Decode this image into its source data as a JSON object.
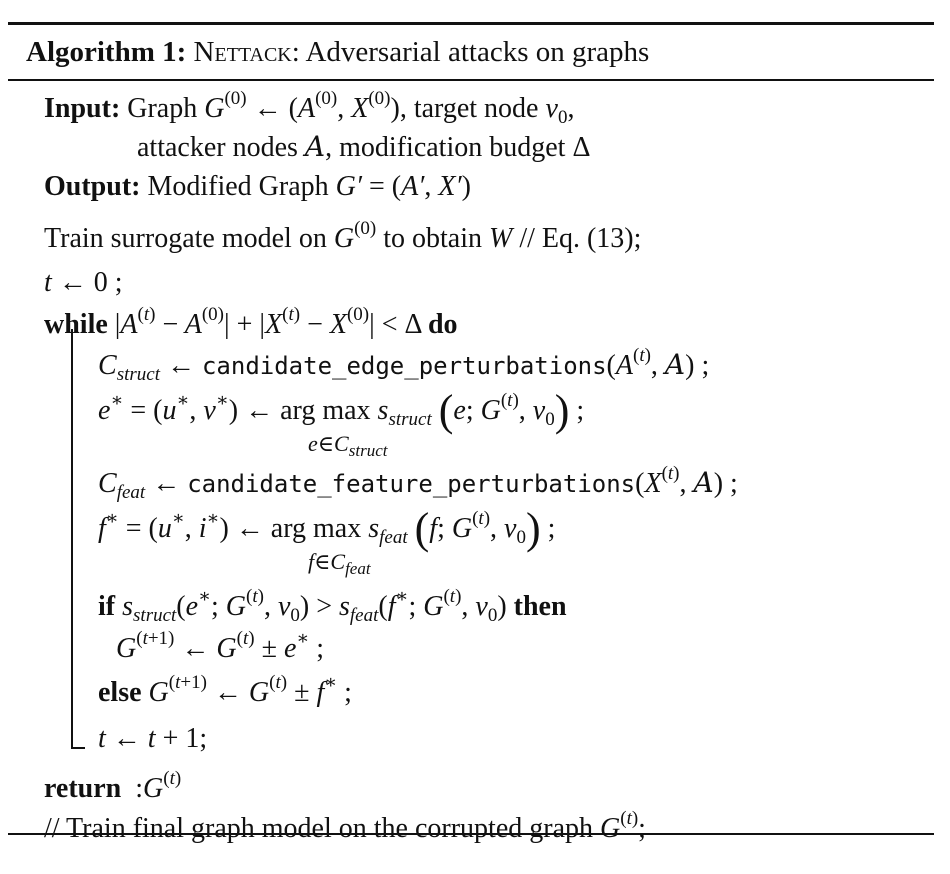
{
  "algorithm": {
    "label": "Algorithm 1:",
    "name": "Nettack",
    "subtitle": ": Adversarial attacks on graphs"
  },
  "input": {
    "keyword": "Input:",
    "graph_word": "Graph",
    "target_text": ", target node",
    "attacker_text": "attacker nodes",
    "budget_text": ", modification budget"
  },
  "output": {
    "keyword": "Output:",
    "text": "Modified Graph"
  },
  "steps": {
    "train_prefix": "Train surrogate model on",
    "train_middle": "to obtain",
    "train_comment": "// Eq. (13);",
    "while_kw": "while",
    "do_kw": "do",
    "cand_edge_fn": "candidate_edge_perturbations",
    "cand_feat_fn": "candidate_feature_perturbations",
    "argmax": "arg max",
    "if_kw": "if",
    "then_kw": "then",
    "else_kw": "else",
    "return_kw": "return",
    "final_comment": "// Train final graph model on the corrupted graph"
  }
}
